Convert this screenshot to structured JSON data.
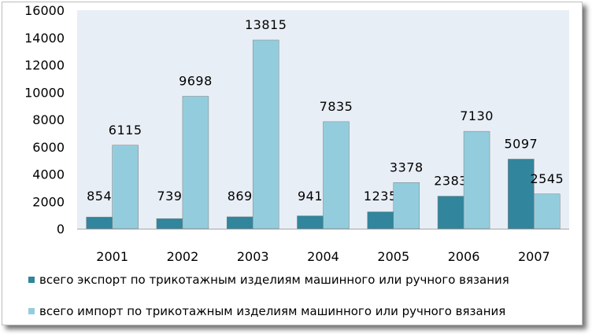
{
  "chart_data": {
    "type": "bar",
    "categories": [
      "2001",
      "2002",
      "2003",
      "2004",
      "2005",
      "2006",
      "2007"
    ],
    "series": [
      {
        "name": "всего экспорт по трикотажным изделиям машинного или ручного вязания",
        "values": [
          854,
          739,
          869,
          941,
          1235,
          2383,
          5097
        ],
        "color": "#31859c"
      },
      {
        "name": "всего импорт по трикотажным изделиям машинного или ручного вязания",
        "values": [
          6115,
          9698,
          13815,
          7835,
          3378,
          7130,
          2545
        ],
        "color": "#93cddd"
      }
    ],
    "y_ticks": [
      "0",
      "2000",
      "4000",
      "6000",
      "8000",
      "10000",
      "12000",
      "14000",
      "16000"
    ],
    "ylim": [
      0,
      16000
    ],
    "grid": false,
    "legend_position": "bottom",
    "data_labels": true,
    "plot_background": "#e8eef6",
    "title": "",
    "xlabel": "",
    "ylabel": ""
  }
}
